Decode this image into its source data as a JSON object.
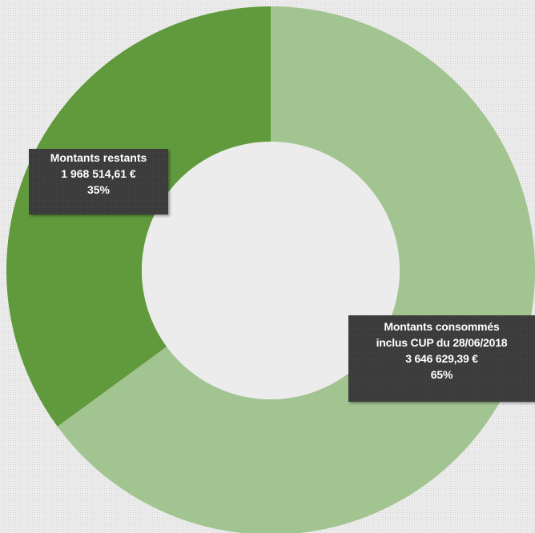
{
  "chart_data": {
    "type": "pie",
    "variant": "doughnut",
    "title": "",
    "slices": [
      {
        "label_line1": "Montants consommés",
        "label_line2": "inclus CUP du 28/06/2018",
        "amount": "3 646 629,39 €",
        "percent_label": "65%",
        "value": 3646629.39,
        "color": "#a1c490"
      },
      {
        "label_line1": "Montants restants",
        "label_line2": "",
        "amount": "1 968 514,61 €",
        "percent_label": "35%",
        "value": 1968514.61,
        "color": "#609a3c"
      }
    ],
    "start_angle_deg": 0,
    "direction": "clockwise",
    "legend": "none"
  }
}
